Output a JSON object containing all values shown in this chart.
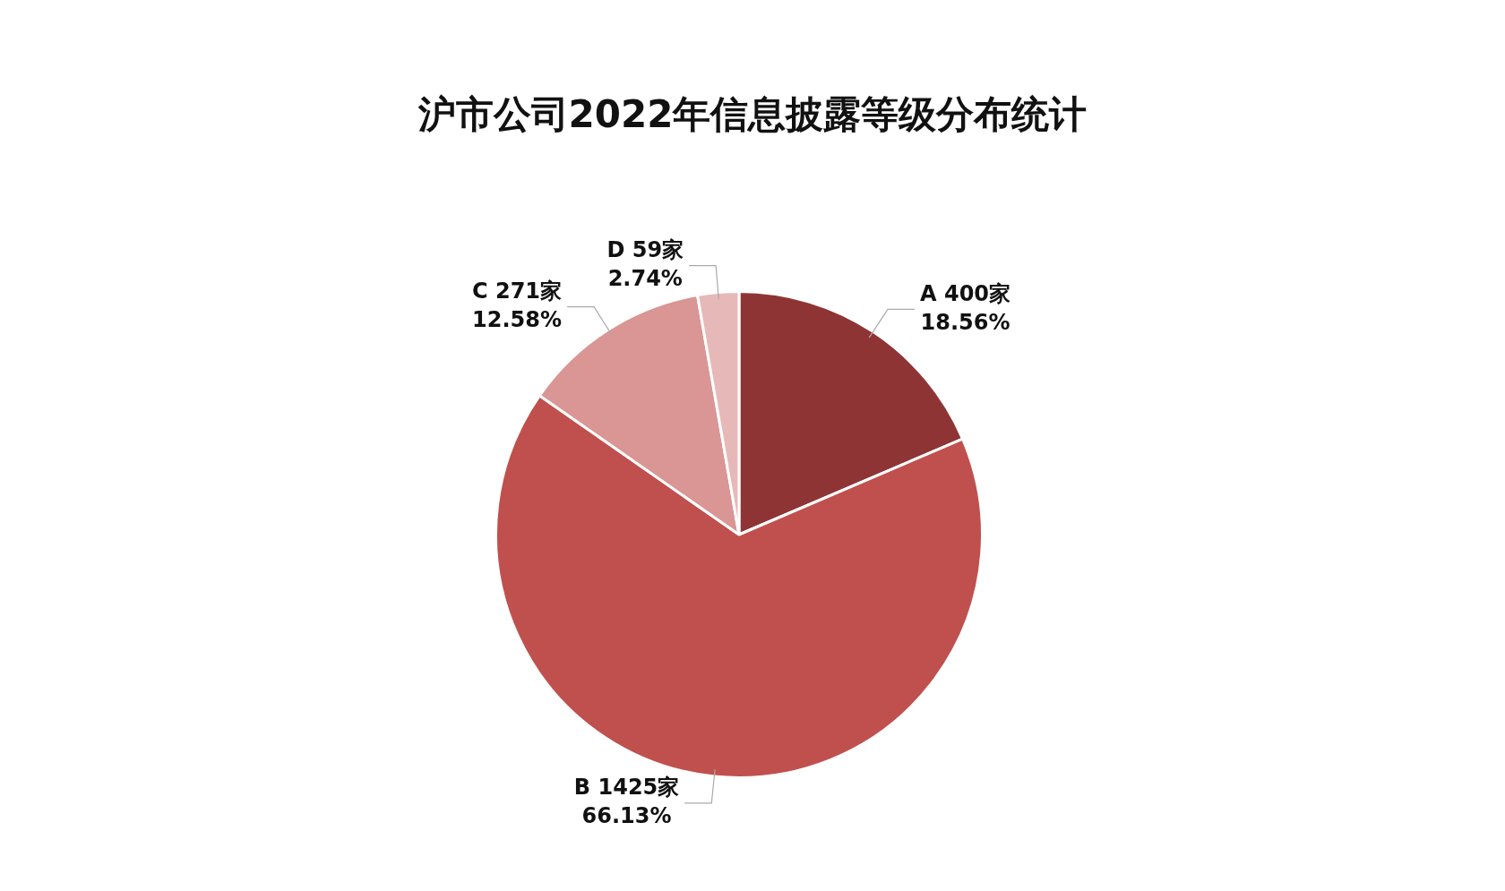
{
  "chart_data": {
    "type": "pie",
    "title": "沪市公司2022年信息披露等级分布统计",
    "categories": [
      "A",
      "B",
      "C",
      "D"
    ],
    "values": [
      400,
      1425,
      271,
      59
    ],
    "value_labels": [
      "400家\n18.56%",
      "1425家\n66.13%",
      "271家\n12.58%",
      "59家\n2.74%"
    ],
    "colors": [
      "#8f3434",
      "#c0504d",
      "#d99694",
      "#e6b9b8"
    ],
    "legend": false
  }
}
